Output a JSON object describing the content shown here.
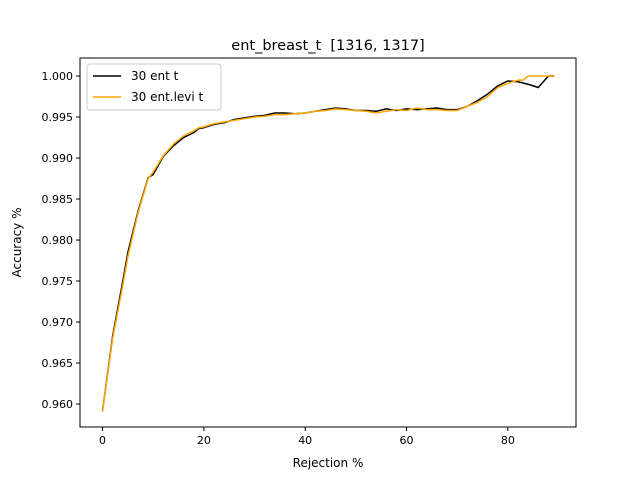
{
  "chart_data": {
    "type": "line",
    "title": "ent_breast_t  [1316, 1317]",
    "xlabel": "Rejection %",
    "ylabel": "Accuracy %",
    "xlim": [
      -4.45,
      93.45
    ],
    "ylim": [
      0.9572,
      1.0022
    ],
    "xticks": [
      0,
      20,
      40,
      60,
      80
    ],
    "yticks": [
      0.96,
      0.965,
      0.97,
      0.975,
      0.98,
      0.985,
      0.99,
      0.995,
      1.0
    ],
    "ytick_labels": [
      "0.960",
      "0.965",
      "0.970",
      "0.975",
      "0.980",
      "0.985",
      "0.990",
      "0.995",
      "1.000"
    ],
    "grid": false,
    "legend_position": "top-left",
    "series": [
      {
        "name": "30 ent t",
        "color": "#000000",
        "x": [
          0,
          2,
          4,
          5,
          7,
          9,
          10,
          12,
          14,
          16,
          18,
          19,
          20,
          22,
          24,
          26,
          28,
          30,
          32,
          34,
          36,
          38,
          40,
          42,
          44,
          46,
          48,
          50,
          52,
          54,
          56,
          58,
          60,
          62,
          64,
          66,
          68,
          70,
          72,
          74,
          76,
          78,
          80,
          82,
          84,
          86,
          88,
          89
        ],
        "y": [
          0.9592,
          0.9683,
          0.975,
          0.9785,
          0.9835,
          0.9876,
          0.988,
          0.9902,
          0.9915,
          0.9925,
          0.9931,
          0.9936,
          0.9937,
          0.9941,
          0.9943,
          0.9947,
          0.9949,
          0.9951,
          0.9952,
          0.9955,
          0.9955,
          0.9954,
          0.9955,
          0.9957,
          0.9959,
          0.9961,
          0.996,
          0.9958,
          0.9958,
          0.9957,
          0.996,
          0.9958,
          0.996,
          0.9959,
          0.996,
          0.9961,
          0.9959,
          0.9959,
          0.9963,
          0.997,
          0.9978,
          0.9988,
          0.9994,
          0.9993,
          0.999,
          0.9986,
          1.0,
          1.0
        ]
      },
      {
        "name": "30 ent.levi t",
        "color": "#ffa500",
        "x": [
          0,
          2,
          4,
          5,
          7,
          9,
          10,
          12,
          14,
          16,
          18,
          19,
          20,
          22,
          24,
          26,
          28,
          30,
          32,
          34,
          36,
          38,
          40,
          42,
          44,
          46,
          48,
          50,
          52,
          54,
          56,
          58,
          60,
          62,
          64,
          66,
          68,
          70,
          72,
          74,
          76,
          78,
          80,
          82,
          83,
          84,
          86,
          88,
          89
        ],
        "y": [
          0.9592,
          0.968,
          0.9745,
          0.978,
          0.9833,
          0.9875,
          0.9883,
          0.9903,
          0.9917,
          0.9927,
          0.9933,
          0.9937,
          0.9938,
          0.9942,
          0.9944,
          0.9946,
          0.9948,
          0.995,
          0.9951,
          0.9953,
          0.9953,
          0.9954,
          0.9955,
          0.9957,
          0.9958,
          0.996,
          0.9959,
          0.9958,
          0.9957,
          0.9955,
          0.9957,
          0.9959,
          0.9958,
          0.9961,
          0.9959,
          0.9959,
          0.9958,
          0.9958,
          0.9963,
          0.9968,
          0.9975,
          0.9986,
          0.9991,
          0.9995,
          0.9995,
          1.0,
          1.0,
          1.0,
          1.0
        ]
      }
    ]
  }
}
